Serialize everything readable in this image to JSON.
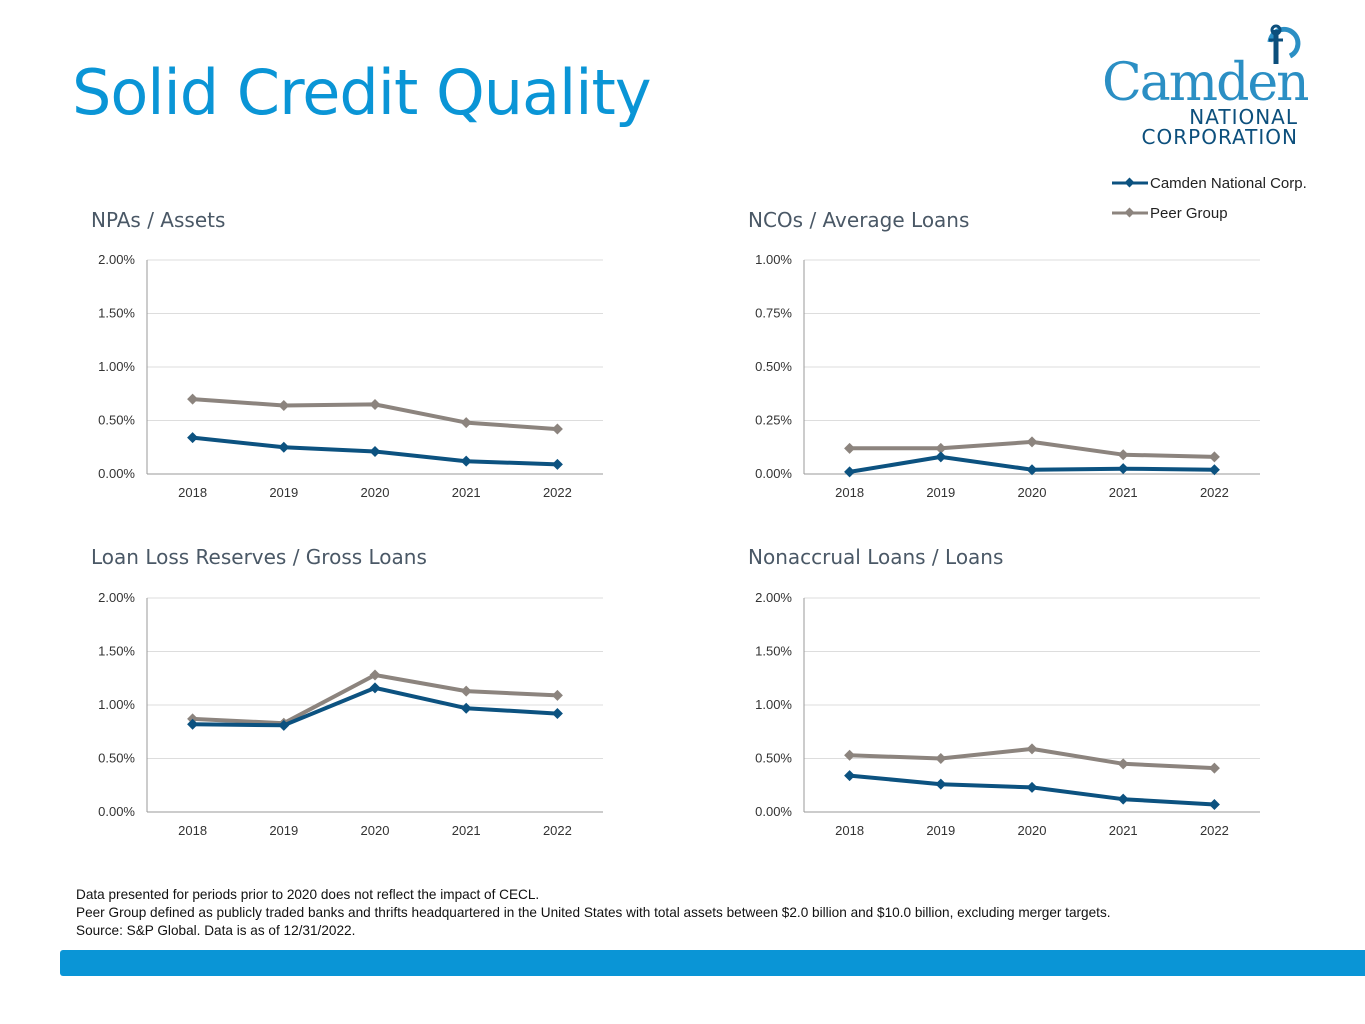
{
  "page": {
    "title": "Solid Credit Quality"
  },
  "logo": {
    "name": "Camden",
    "line2": "NATIONAL",
    "line3": "CORPORATION",
    "colors": {
      "primary": "#2b8fc4",
      "secondary": "#0c4f7c"
    }
  },
  "legend": {
    "items": [
      {
        "label": "Camden National Corp.",
        "color": "#0c5280"
      },
      {
        "label": "Peer Group",
        "color": "#8c847e"
      }
    ]
  },
  "chart_data": [
    {
      "type": "line",
      "title": "NPAs / Assets",
      "categories": [
        "2018",
        "2019",
        "2020",
        "2021",
        "2022"
      ],
      "ylim": [
        0,
        2.0
      ],
      "yticks": [
        "2.00%",
        "1.50%",
        "1.00%",
        "0.50%",
        "0.00%"
      ],
      "series": [
        {
          "name": "Camden National Corp.",
          "values": [
            0.34,
            0.25,
            0.21,
            0.12,
            0.09
          ]
        },
        {
          "name": "Peer Group",
          "values": [
            0.7,
            0.64,
            0.65,
            0.48,
            0.42
          ]
        }
      ]
    },
    {
      "type": "line",
      "title": "NCOs / Average Loans",
      "categories": [
        "2018",
        "2019",
        "2020",
        "2021",
        "2022"
      ],
      "ylim": [
        0,
        1.0
      ],
      "yticks": [
        "1.00%",
        "0.75%",
        "0.50%",
        "0.25%",
        "0.00%"
      ],
      "series": [
        {
          "name": "Camden National Corp.",
          "values": [
            0.01,
            0.08,
            0.02,
            0.025,
            0.02
          ]
        },
        {
          "name": "Peer Group",
          "values": [
            0.12,
            0.12,
            0.15,
            0.09,
            0.08
          ]
        }
      ]
    },
    {
      "type": "line",
      "title": "Loan Loss Reserves / Gross Loans",
      "categories": [
        "2018",
        "2019",
        "2020",
        "2021",
        "2022"
      ],
      "ylim": [
        0,
        2.0
      ],
      "yticks": [
        "2.00%",
        "1.50%",
        "1.00%",
        "0.50%",
        "0.00%"
      ],
      "series": [
        {
          "name": "Camden National Corp.",
          "values": [
            0.82,
            0.81,
            1.16,
            0.97,
            0.92
          ]
        },
        {
          "name": "Peer Group",
          "values": [
            0.87,
            0.83,
            1.28,
            1.13,
            1.09
          ]
        }
      ]
    },
    {
      "type": "line",
      "title": "Nonaccrual Loans / Loans",
      "categories": [
        "2018",
        "2019",
        "2020",
        "2021",
        "2022"
      ],
      "ylim": [
        0,
        2.0
      ],
      "yticks": [
        "2.00%",
        "1.50%",
        "1.00%",
        "0.50%",
        "0.00%"
      ],
      "series": [
        {
          "name": "Camden National Corp.",
          "values": [
            0.34,
            0.26,
            0.23,
            0.12,
            0.07
          ]
        },
        {
          "name": "Peer Group",
          "values": [
            0.53,
            0.5,
            0.59,
            0.45,
            0.41
          ]
        }
      ]
    }
  ],
  "footnotes": [
    "Data presented for periods prior to 2020 does not reflect the impact of CECL.",
    "Peer Group defined as publicly traded banks and thrifts headquartered in the United States with total assets between $2.0 billion and $10.0 billion, excluding merger targets.",
    "Source: S&P Global. Data is as of 12/31/2022."
  ],
  "colors": {
    "accent": "#0a95d6",
    "camden_series": "#0c5280",
    "peer_series": "#8c847e",
    "grid": "#dddddd",
    "axis": "#999999"
  }
}
